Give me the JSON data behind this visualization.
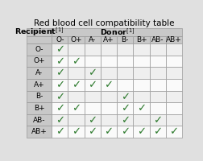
{
  "title": "Red blood cell compatibility table",
  "blood_types": [
    "O-",
    "O+",
    "A-",
    "A+",
    "B-",
    "B+",
    "AB-",
    "AB+"
  ],
  "compatibility": [
    [
      1,
      0,
      0,
      0,
      0,
      0,
      0,
      0
    ],
    [
      1,
      1,
      0,
      0,
      0,
      0,
      0,
      0
    ],
    [
      1,
      0,
      1,
      0,
      0,
      0,
      0,
      0
    ],
    [
      1,
      1,
      1,
      1,
      0,
      0,
      0,
      0
    ],
    [
      1,
      0,
      0,
      0,
      1,
      0,
      0,
      0
    ],
    [
      1,
      1,
      0,
      0,
      1,
      1,
      0,
      0
    ],
    [
      1,
      0,
      1,
      0,
      1,
      0,
      1,
      0
    ],
    [
      1,
      1,
      1,
      1,
      1,
      1,
      1,
      1
    ]
  ],
  "check_color": "#2d7a2d",
  "header_bg": "#c8c8c8",
  "row_bg_even": "#efefef",
  "row_bg_odd": "#fafafa",
  "border_color": "#999999",
  "title_fontsize": 7.5,
  "cell_fontsize": 6.5,
  "header_fontsize": 6.8,
  "check_fontsize": 9.5,
  "fig_bg": "#e0e0e0"
}
